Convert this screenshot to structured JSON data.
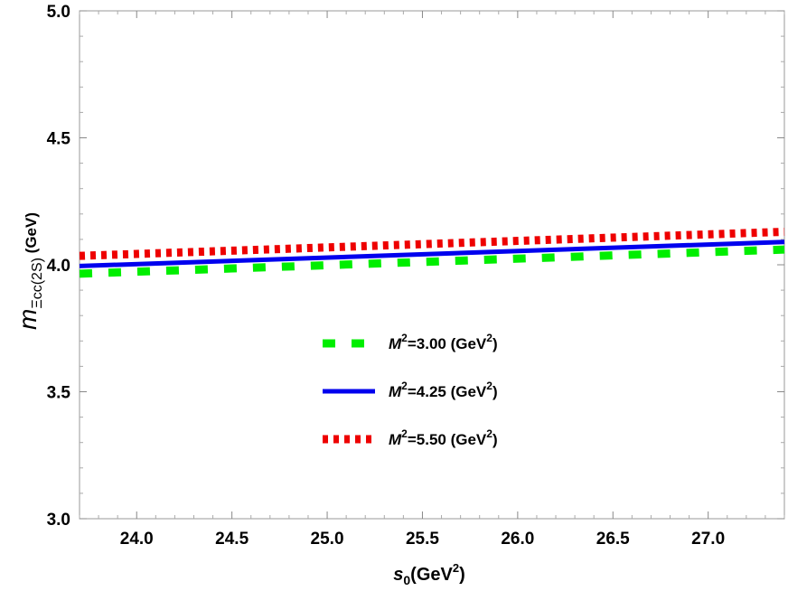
{
  "chart_data": {
    "type": "line",
    "xlabel_base": "s",
    "xlabel_sub": "0",
    "xlabel_unit_pre": "(GeV",
    "xlabel_unit_sup": "2",
    "xlabel_unit_post": ")",
    "ylabel_base": "m",
    "ylabel_sub": "Ξcc(2S)",
    "ylabel_unit": " (GeV)",
    "xlim": [
      23.7,
      27.4
    ],
    "ylim": [
      3.0,
      5.0
    ],
    "x_ticks": [
      "24.0",
      "24.5",
      "25.0",
      "25.5",
      "26.0",
      "26.5",
      "27.0"
    ],
    "x_tick_values": [
      24.0,
      24.5,
      25.0,
      25.5,
      26.0,
      26.5,
      27.0
    ],
    "y_ticks": [
      "3.0",
      "3.5",
      "4.0",
      "4.5",
      "5.0"
    ],
    "y_tick_values": [
      3.0,
      3.5,
      4.0,
      4.5,
      5.0
    ],
    "legend_position": "center",
    "series": [
      {
        "name_pre": "M",
        "name_sup": "2",
        "name_val": "=3.00 (GeV",
        "name_unit_sup": "2",
        "name_post": ")",
        "color": "#00ee00",
        "style": "dashed",
        "x": [
          23.7,
          27.4
        ],
        "y": [
          3.965,
          4.06
        ]
      },
      {
        "name_pre": "M",
        "name_sup": "2",
        "name_val": "=4.25 (GeV",
        "name_unit_sup": "2",
        "name_post": ")",
        "color": "#0000ee",
        "style": "solid",
        "x": [
          23.7,
          27.4
        ],
        "y": [
          3.995,
          4.09
        ]
      },
      {
        "name_pre": "M",
        "name_sup": "2",
        "name_val": "=5.50 (GeV",
        "name_unit_sup": "2",
        "name_post": ")",
        "color": "#ee0000",
        "style": "dotted",
        "x": [
          23.7,
          27.4
        ],
        "y": [
          4.035,
          4.13
        ]
      }
    ]
  }
}
